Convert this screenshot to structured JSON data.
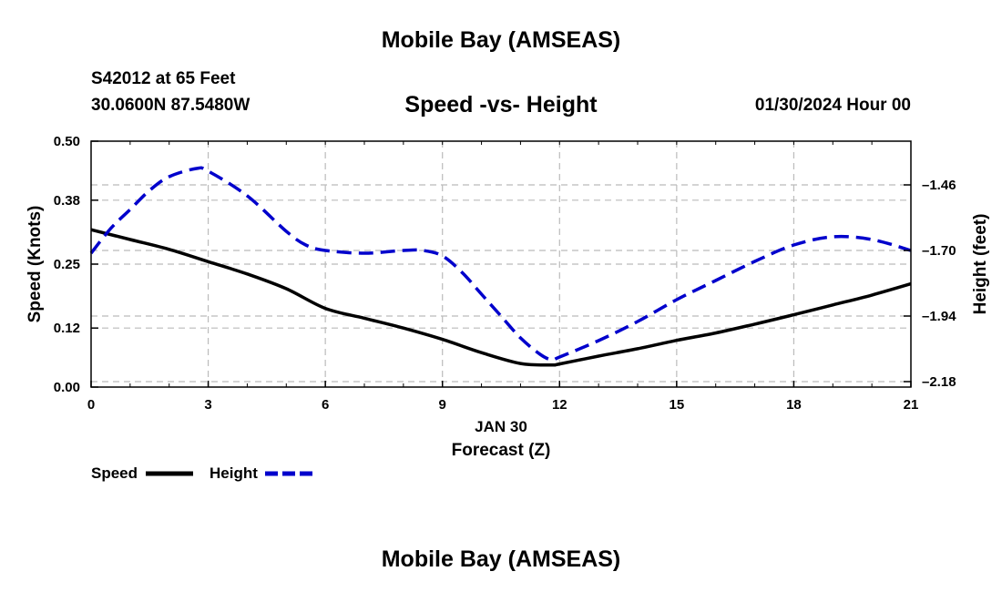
{
  "header": {
    "main_title": "Mobile Bay (AMSEAS)",
    "station": "S42012 at 65 Feet",
    "coords": "30.0600N  87.5480W",
    "chart_title": "Speed -vs- Height",
    "date": "01/30/2024 Hour 00",
    "footer_title": "Mobile Bay (AMSEAS)"
  },
  "colors": {
    "speed": "#000000",
    "height": "#0000cc",
    "grid": "#bbbbbb"
  },
  "chart_data": {
    "type": "line",
    "title": "Speed -vs- Height",
    "xlabel": "Forecast (Z)",
    "xlabel_date": "JAN 30",
    "ylabel": "Speed (Knots)",
    "y2label": "Height (feet)",
    "xlim": [
      0,
      21
    ],
    "ylim": [
      0,
      0.5
    ],
    "y2lim": [
      -2.2,
      -1.3
    ],
    "xticks": [
      0,
      3,
      6,
      9,
      12,
      15,
      18,
      21
    ],
    "yticks": [
      "0.00",
      "0.12",
      "0.25",
      "0.38",
      "0.50"
    ],
    "y2ticks": [
      "-1.46",
      "-1.70",
      "-1.94",
      "-2.18"
    ],
    "legend": "bottom-left",
    "series": [
      {
        "name": "Speed",
        "style": "solid",
        "x": [
          0,
          1,
          2,
          3,
          4,
          5,
          6,
          7,
          8,
          9,
          10,
          11,
          11.8,
          12,
          13,
          14,
          15,
          16,
          17,
          18,
          19,
          20,
          21
        ],
        "values": [
          0.32,
          0.3,
          0.28,
          0.255,
          0.23,
          0.2,
          0.16,
          0.14,
          0.12,
          0.097,
          0.07,
          0.048,
          0.045,
          0.047,
          0.063,
          0.078,
          0.095,
          0.11,
          0.128,
          0.147,
          0.167,
          0.187,
          0.21
        ]
      },
      {
        "name": "Height",
        "style": "dashed",
        "x": [
          0,
          0.5,
          1,
          1.5,
          2,
          2.7,
          3,
          4,
          5,
          5.5,
          6,
          7,
          8,
          8.5,
          9,
          9.5,
          10,
          10.5,
          11,
          11.5,
          11.8,
          12,
          13,
          14,
          15,
          16,
          17,
          18,
          19,
          20,
          21
        ],
        "values": [
          -1.71,
          -1.62,
          -1.55,
          -1.48,
          -1.43,
          -1.4,
          -1.41,
          -1.5,
          -1.63,
          -1.68,
          -1.7,
          -1.71,
          -1.7,
          -1.7,
          -1.72,
          -1.78,
          -1.86,
          -1.94,
          -2.02,
          -2.08,
          -2.1,
          -2.09,
          -2.03,
          -1.96,
          -1.88,
          -1.81,
          -1.74,
          -1.68,
          -1.65,
          -1.66,
          -1.7
        ]
      }
    ]
  }
}
